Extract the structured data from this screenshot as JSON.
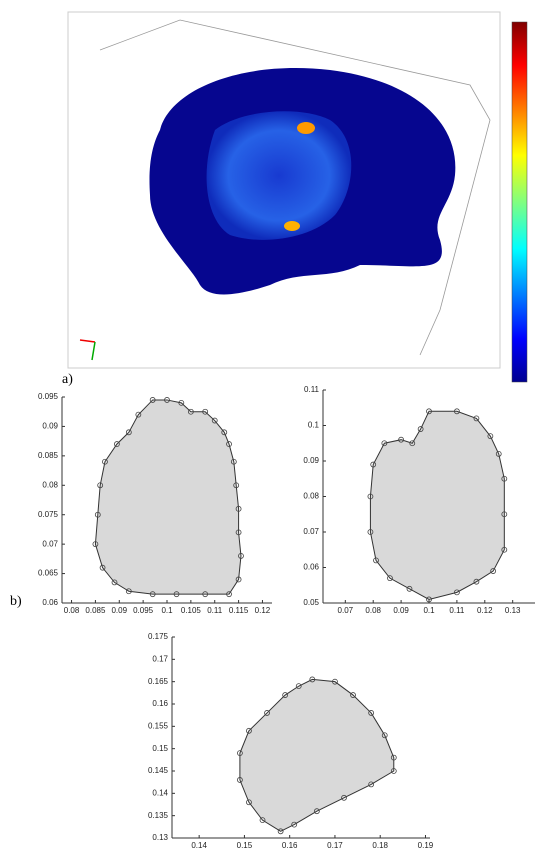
{
  "figure": {
    "panel_a_label": "a)",
    "panel_b_label": "b)"
  },
  "chart_data": [
    {
      "type": "contour",
      "xlim": [
        0.078,
        0.122
      ],
      "ylim": [
        0.06,
        0.095
      ],
      "xticks": [
        0.08,
        0.085,
        0.09,
        0.095,
        0.1,
        0.105,
        0.11,
        0.115,
        0.12
      ],
      "yticks": [
        0.06,
        0.065,
        0.07,
        0.075,
        0.08,
        0.085,
        0.09,
        0.095
      ],
      "x": [
        0.097,
        0.1,
        0.103,
        0.105,
        0.108,
        0.11,
        0.112,
        0.113,
        0.114,
        0.1145,
        0.115,
        0.115,
        0.1155,
        0.115,
        0.113,
        0.108,
        0.102,
        0.097,
        0.092,
        0.089,
        0.0865,
        0.085,
        0.0855,
        0.086,
        0.087,
        0.0895,
        0.092,
        0.094
      ],
      "y": [
        0.0945,
        0.0945,
        0.094,
        0.0925,
        0.0925,
        0.091,
        0.089,
        0.087,
        0.084,
        0.08,
        0.076,
        0.072,
        0.068,
        0.064,
        0.0615,
        0.0615,
        0.0615,
        0.0615,
        0.062,
        0.0635,
        0.066,
        0.07,
        0.075,
        0.08,
        0.084,
        0.087,
        0.089,
        0.092
      ]
    },
    {
      "type": "contour",
      "xlim": [
        0.062,
        0.138
      ],
      "ylim": [
        0.05,
        0.11
      ],
      "xticks": [
        0.07,
        0.08,
        0.09,
        0.1,
        0.11,
        0.12,
        0.13
      ],
      "yticks": [
        0.05,
        0.06,
        0.07,
        0.08,
        0.09,
        0.1,
        0.11
      ],
      "x": [
        0.1,
        0.11,
        0.117,
        0.122,
        0.125,
        0.127,
        0.127,
        0.127,
        0.123,
        0.117,
        0.11,
        0.1,
        0.093,
        0.086,
        0.081,
        0.079,
        0.079,
        0.08,
        0.084,
        0.09,
        0.094,
        0.097
      ],
      "y": [
        0.104,
        0.104,
        0.102,
        0.097,
        0.092,
        0.085,
        0.075,
        0.065,
        0.059,
        0.056,
        0.053,
        0.051,
        0.054,
        0.057,
        0.062,
        0.07,
        0.08,
        0.089,
        0.095,
        0.096,
        0.095,
        0.099
      ]
    },
    {
      "type": "contour",
      "xlim": [
        0.134,
        0.191
      ],
      "ylim": [
        0.13,
        0.175
      ],
      "xticks": [
        0.14,
        0.15,
        0.16,
        0.17,
        0.18,
        0.19
      ],
      "yticks": [
        0.13,
        0.135,
        0.14,
        0.145,
        0.15,
        0.155,
        0.16,
        0.165,
        0.17,
        0.175
      ],
      "x": [
        0.165,
        0.17,
        0.174,
        0.178,
        0.181,
        0.183,
        0.183,
        0.178,
        0.172,
        0.166,
        0.161,
        0.158,
        0.154,
        0.151,
        0.149,
        0.149,
        0.151,
        0.155,
        0.159,
        0.162
      ],
      "y": [
        0.1655,
        0.165,
        0.162,
        0.158,
        0.153,
        0.148,
        0.145,
        0.142,
        0.139,
        0.136,
        0.133,
        0.1315,
        0.134,
        0.138,
        0.143,
        0.149,
        0.154,
        0.158,
        0.162,
        0.164
      ]
    }
  ]
}
